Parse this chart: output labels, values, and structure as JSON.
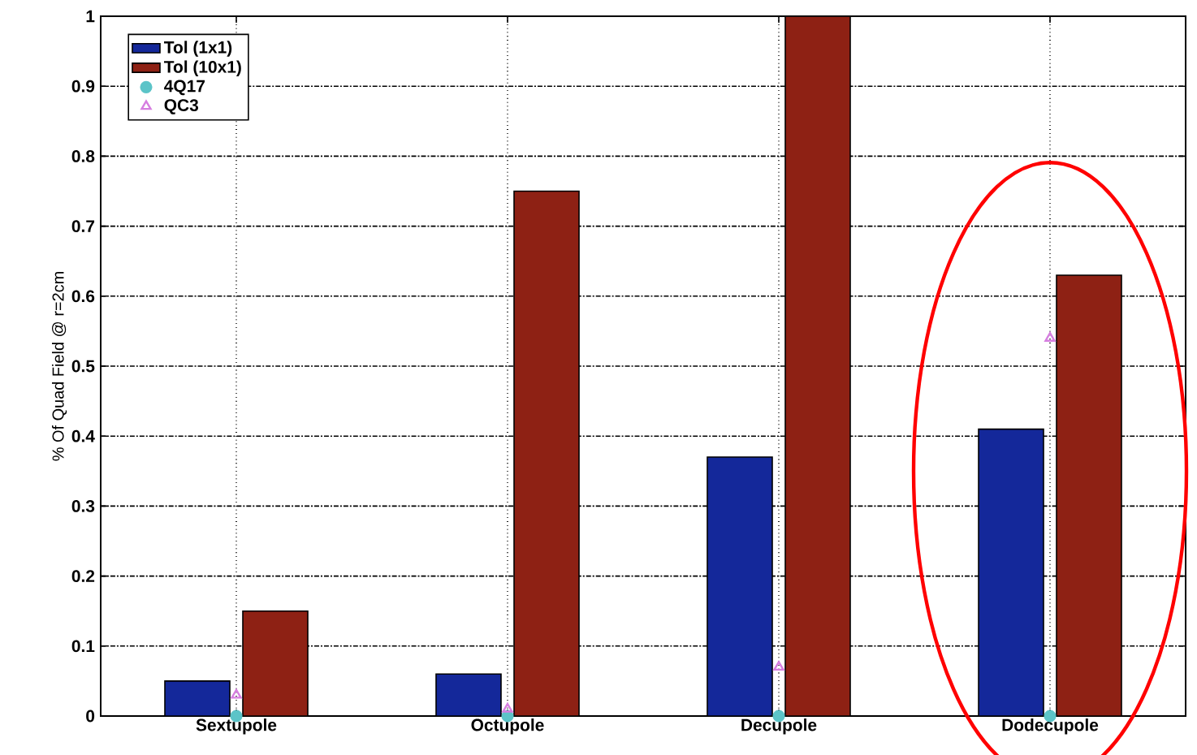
{
  "chart_data": {
    "type": "bar",
    "ylabel": "% Of Quad Field @ r=2cm",
    "categories": [
      "Sextupole",
      "Octupole",
      "Decupole",
      "Dodecupole"
    ],
    "series": [
      {
        "name": "Tol (1x1)",
        "color": "#14289a",
        "values": [
          0.05,
          0.06,
          0.37,
          0.41
        ]
      },
      {
        "name": "Tol (10x1)",
        "color": "#8e2114",
        "values": [
          0.15,
          0.75,
          1.0,
          0.63
        ]
      },
      {
        "name": "4Q17",
        "type": "scatter",
        "marker": "circle",
        "color": "#5cc4c8",
        "values": [
          0,
          0,
          0,
          0
        ]
      },
      {
        "name": "QC3",
        "type": "scatter",
        "marker": "triangle",
        "color": "#d67ee0",
        "values": [
          0.03,
          0.01,
          0.07,
          0.54
        ]
      }
    ],
    "ylim": [
      0,
      1
    ],
    "yticks": [
      0,
      0.1,
      0.2,
      0.3,
      0.4,
      0.5,
      0.6,
      0.7,
      0.8,
      0.9,
      1
    ],
    "grid": true,
    "legend": "top left"
  }
}
